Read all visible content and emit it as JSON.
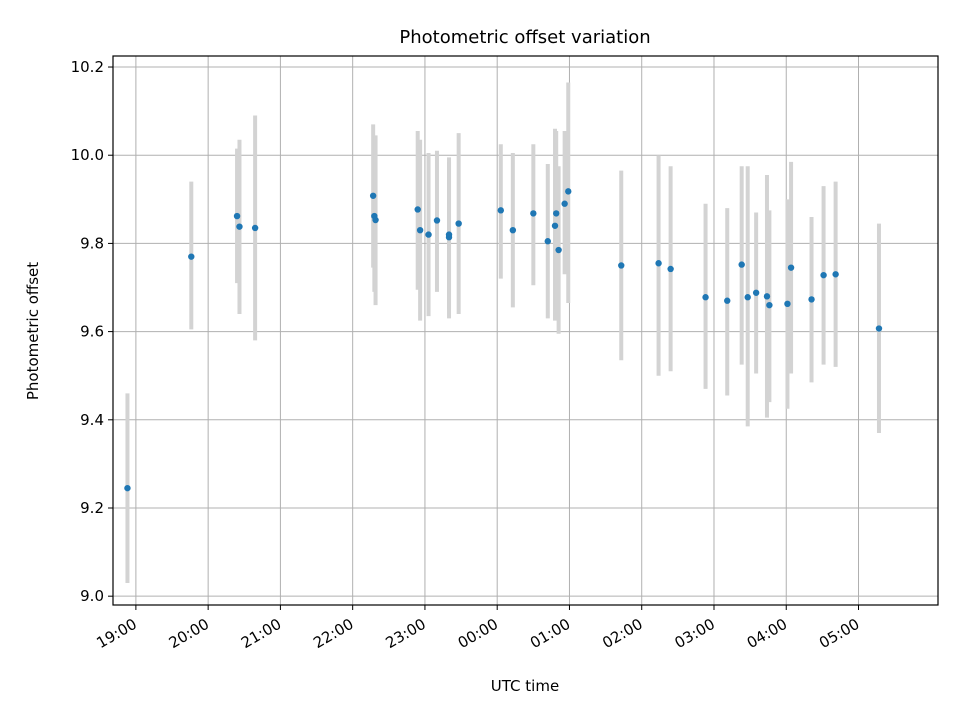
{
  "chart_data": {
    "type": "scatter",
    "title": "Photometric offset variation",
    "xlabel": "UTC time",
    "ylabel": "Photometric offset",
    "x_unit": "hours since 19:00 UTC (x values are times of day; ticks printed as HH:MM)",
    "xlim": [
      "18:41",
      "06:06"
    ],
    "ylim": [
      8.98,
      10.225
    ],
    "x_ticks": [
      "19:00",
      "20:00",
      "21:00",
      "22:00",
      "23:00",
      "00:00",
      "01:00",
      "02:00",
      "03:00",
      "04:00",
      "05:00"
    ],
    "y_ticks": [
      "9.0",
      "9.2",
      "9.4",
      "9.6",
      "9.8",
      "10.0",
      "10.2"
    ],
    "grid": true,
    "point_color": "#1f77b4",
    "errorbar_color": "#d3d3d3",
    "points": [
      {
        "x": "18:53",
        "y": 9.245,
        "lo": 9.03,
        "hi": 9.46
      },
      {
        "x": "19:46",
        "y": 9.77,
        "lo": 9.605,
        "hi": 9.94
      },
      {
        "x": "20:24",
        "y": 9.862,
        "lo": 9.71,
        "hi": 10.015
      },
      {
        "x": "20:26",
        "y": 9.838,
        "lo": 9.64,
        "hi": 10.035
      },
      {
        "x": "20:39",
        "y": 9.835,
        "lo": 9.58,
        "hi": 10.09
      },
      {
        "x": "22:17",
        "y": 9.908,
        "lo": 9.745,
        "hi": 10.07
      },
      {
        "x": "22:18",
        "y": 9.862,
        "lo": 9.69,
        "hi": 10.035
      },
      {
        "x": "22:19",
        "y": 9.853,
        "lo": 9.66,
        "hi": 10.045
      },
      {
        "x": "22:54",
        "y": 9.877,
        "lo": 9.695,
        "hi": 10.055
      },
      {
        "x": "22:56",
        "y": 9.83,
        "lo": 9.625,
        "hi": 10.035
      },
      {
        "x": "23:03",
        "y": 9.82,
        "lo": 9.635,
        "hi": 10.005
      },
      {
        "x": "23:10",
        "y": 9.852,
        "lo": 9.69,
        "hi": 10.01
      },
      {
        "x": "23:20",
        "y": 9.82,
        "lo": 9.65,
        "hi": 9.985
      },
      {
        "x": "23:20",
        "y": 9.814,
        "lo": 9.63,
        "hi": 9.995
      },
      {
        "x": "23:28",
        "y": 9.845,
        "lo": 9.64,
        "hi": 10.05
      },
      {
        "x": "00:03",
        "y": 9.875,
        "lo": 9.72,
        "hi": 10.025
      },
      {
        "x": "00:13",
        "y": 9.83,
        "lo": 9.655,
        "hi": 10.005
      },
      {
        "x": "00:30",
        "y": 9.868,
        "lo": 9.705,
        "hi": 10.025
      },
      {
        "x": "00:42",
        "y": 9.805,
        "lo": 9.63,
        "hi": 9.98
      },
      {
        "x": "00:48",
        "y": 9.84,
        "lo": 9.625,
        "hi": 10.06
      },
      {
        "x": "00:49",
        "y": 9.868,
        "lo": 9.65,
        "hi": 10.055
      },
      {
        "x": "00:51",
        "y": 9.785,
        "lo": 9.595,
        "hi": 9.975
      },
      {
        "x": "00:56",
        "y": 9.89,
        "lo": 9.73,
        "hi": 10.055
      },
      {
        "x": "00:59",
        "y": 9.918,
        "lo": 9.665,
        "hi": 10.165
      },
      {
        "x": "01:43",
        "y": 9.75,
        "lo": 9.535,
        "hi": 9.965
      },
      {
        "x": "02:14",
        "y": 9.755,
        "lo": 9.5,
        "hi": 10.0
      },
      {
        "x": "02:24",
        "y": 9.742,
        "lo": 9.51,
        "hi": 9.975
      },
      {
        "x": "02:53",
        "y": 9.678,
        "lo": 9.47,
        "hi": 9.89
      },
      {
        "x": "03:11",
        "y": 9.67,
        "lo": 9.455,
        "hi": 9.88
      },
      {
        "x": "03:23",
        "y": 9.752,
        "lo": 9.525,
        "hi": 9.975
      },
      {
        "x": "03:28",
        "y": 9.678,
        "lo": 9.385,
        "hi": 9.975
      },
      {
        "x": "03:35",
        "y": 9.688,
        "lo": 9.505,
        "hi": 9.87
      },
      {
        "x": "03:44",
        "y": 9.68,
        "lo": 9.405,
        "hi": 9.955
      },
      {
        "x": "03:46",
        "y": 9.66,
        "lo": 9.44,
        "hi": 9.875
      },
      {
        "x": "04:01",
        "y": 9.663,
        "lo": 9.425,
        "hi": 9.9
      },
      {
        "x": "04:04",
        "y": 9.745,
        "lo": 9.505,
        "hi": 9.985
      },
      {
        "x": "04:21",
        "y": 9.673,
        "lo": 9.485,
        "hi": 9.86
      },
      {
        "x": "04:31",
        "y": 9.728,
        "lo": 9.525,
        "hi": 9.93
      },
      {
        "x": "04:41",
        "y": 9.73,
        "lo": 9.52,
        "hi": 9.94
      },
      {
        "x": "05:17",
        "y": 9.607,
        "lo": 9.37,
        "hi": 9.845
      }
    ]
  }
}
